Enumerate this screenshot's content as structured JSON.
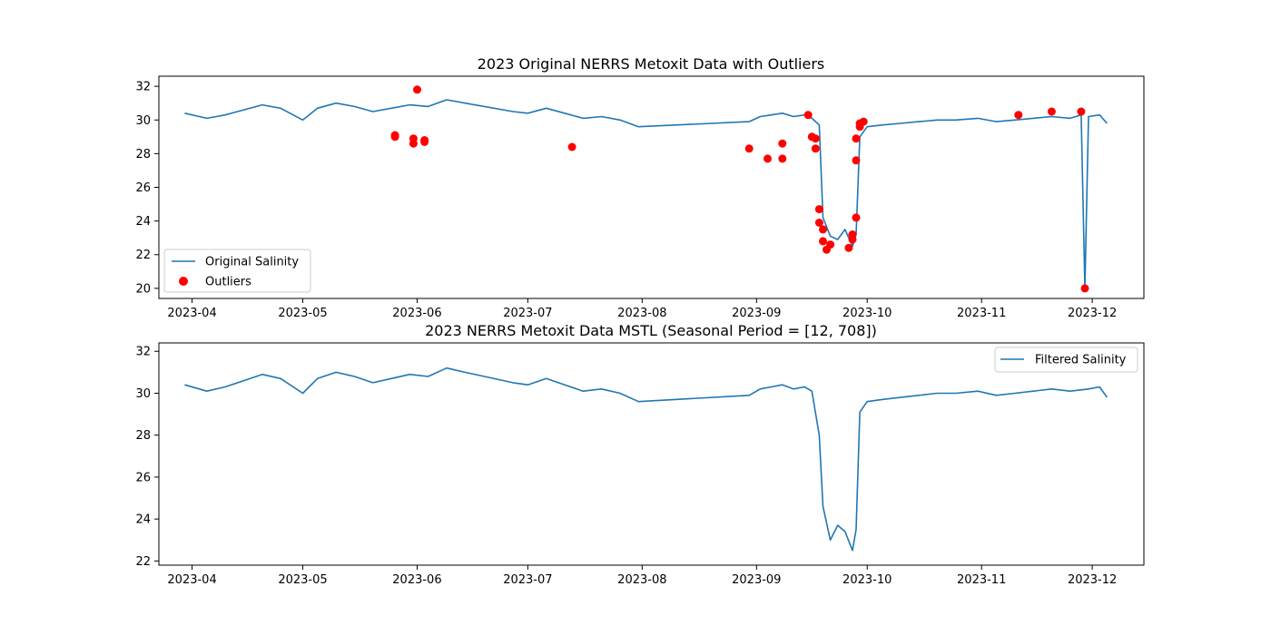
{
  "chart_data": [
    {
      "type": "line",
      "title": "2023 Original NERRS Metoxit Data with Outliers",
      "xlabel": "",
      "ylabel": "",
      "xlim": [
        "2023-03-23",
        "2023-12-15"
      ],
      "ylim": [
        19.4,
        32.6
      ],
      "x_ticks": [
        "2023-04",
        "2023-05",
        "2023-06",
        "2023-07",
        "2023-08",
        "2023-09",
        "2023-10",
        "2023-11",
        "2023-12"
      ],
      "y_ticks": [
        20,
        22,
        24,
        26,
        28,
        30,
        32
      ],
      "legend_position": "lower-left",
      "series": [
        {
          "name": "Original Salinity",
          "kind": "line",
          "color": "#1f77b4",
          "x": [
            "2023-03-30",
            "2023-04-05",
            "2023-04-10",
            "2023-04-15",
            "2023-04-20",
            "2023-04-25",
            "2023-05-01",
            "2023-05-05",
            "2023-05-10",
            "2023-05-15",
            "2023-05-20",
            "2023-05-25",
            "2023-05-30",
            "2023-06-04",
            "2023-06-09",
            "2023-06-14",
            "2023-06-27",
            "2023-07-01",
            "2023-07-06",
            "2023-07-11",
            "2023-07-16",
            "2023-07-21",
            "2023-07-26",
            "2023-07-31",
            "2023-08-30",
            "2023-09-02",
            "2023-09-05",
            "2023-09-08",
            "2023-09-11",
            "2023-09-14",
            "2023-09-16",
            "2023-09-18",
            "2023-09-19",
            "2023-09-21",
            "2023-09-23",
            "2023-09-25",
            "2023-09-27",
            "2023-09-28",
            "2023-09-29",
            "2023-10-01",
            "2023-10-05",
            "2023-10-10",
            "2023-10-15",
            "2023-10-20",
            "2023-10-25",
            "2023-10-31",
            "2023-11-05",
            "2023-11-10",
            "2023-11-15",
            "2023-11-20",
            "2023-11-25",
            "2023-11-28",
            "2023-11-29",
            "2023-11-30",
            "2023-12-03",
            "2023-12-05"
          ],
          "values": [
            30.4,
            30.1,
            30.3,
            30.6,
            30.9,
            30.7,
            30.0,
            30.7,
            31.0,
            30.8,
            30.5,
            30.7,
            30.9,
            30.8,
            31.2,
            31.0,
            30.5,
            30.4,
            30.7,
            30.4,
            30.1,
            30.2,
            30.0,
            29.6,
            29.9,
            30.2,
            30.3,
            30.4,
            30.2,
            30.3,
            30.1,
            29.7,
            24.2,
            23.1,
            22.9,
            23.5,
            22.5,
            23.2,
            29.0,
            29.6,
            29.7,
            29.8,
            29.9,
            30.0,
            30.0,
            30.1,
            29.9,
            30.0,
            30.1,
            30.2,
            30.1,
            30.3,
            20.0,
            30.2,
            30.3,
            29.8
          ]
        },
        {
          "name": "Outliers",
          "kind": "scatter",
          "color": "#ff0000",
          "x": [
            "2023-05-26",
            "2023-05-26",
            "2023-05-31",
            "2023-05-31",
            "2023-06-01",
            "2023-06-03",
            "2023-06-03",
            "2023-07-13",
            "2023-08-30",
            "2023-09-04",
            "2023-09-08",
            "2023-09-08",
            "2023-09-15",
            "2023-09-16",
            "2023-09-17",
            "2023-09-17",
            "2023-09-18",
            "2023-09-18",
            "2023-09-19",
            "2023-09-19",
            "2023-09-20",
            "2023-09-21",
            "2023-09-26",
            "2023-09-27",
            "2023-09-27",
            "2023-09-28",
            "2023-09-28",
            "2023-09-28",
            "2023-09-29",
            "2023-09-29",
            "2023-09-30",
            "2023-11-11",
            "2023-11-20",
            "2023-11-28",
            "2023-11-29"
          ],
          "values": [
            29.1,
            29.0,
            28.9,
            28.6,
            31.8,
            28.8,
            28.7,
            28.4,
            28.3,
            27.7,
            28.6,
            27.7,
            30.3,
            29.0,
            28.9,
            28.3,
            24.7,
            23.9,
            23.5,
            22.8,
            22.3,
            22.6,
            22.4,
            22.9,
            23.2,
            24.2,
            27.6,
            28.9,
            29.6,
            29.8,
            29.9,
            30.3,
            30.5,
            30.5,
            20.0
          ]
        }
      ]
    },
    {
      "type": "line",
      "title": "2023 NERRS Metoxit Data MSTL (Seasonal Period = [12, 708])",
      "xlabel": "",
      "ylabel": "",
      "xlim": [
        "2023-03-23",
        "2023-12-15"
      ],
      "ylim": [
        21.8,
        32.4
      ],
      "x_ticks": [
        "2023-04",
        "2023-05",
        "2023-06",
        "2023-07",
        "2023-08",
        "2023-09",
        "2023-10",
        "2023-11",
        "2023-12"
      ],
      "y_ticks": [
        22,
        24,
        26,
        28,
        30,
        32
      ],
      "legend_position": "upper-right",
      "series": [
        {
          "name": "Filtered Salinity",
          "kind": "line",
          "color": "#1f77b4",
          "x": [
            "2023-03-30",
            "2023-04-05",
            "2023-04-10",
            "2023-04-15",
            "2023-04-20",
            "2023-04-25",
            "2023-05-01",
            "2023-05-05",
            "2023-05-10",
            "2023-05-15",
            "2023-05-20",
            "2023-05-25",
            "2023-05-30",
            "2023-06-04",
            "2023-06-09",
            "2023-06-14",
            "2023-06-27",
            "2023-07-01",
            "2023-07-06",
            "2023-07-11",
            "2023-07-16",
            "2023-07-21",
            "2023-07-26",
            "2023-07-31",
            "2023-08-30",
            "2023-09-02",
            "2023-09-05",
            "2023-09-08",
            "2023-09-11",
            "2023-09-14",
            "2023-09-16",
            "2023-09-18",
            "2023-09-19",
            "2023-09-21",
            "2023-09-23",
            "2023-09-25",
            "2023-09-27",
            "2023-09-28",
            "2023-09-29",
            "2023-10-01",
            "2023-10-05",
            "2023-10-10",
            "2023-10-15",
            "2023-10-20",
            "2023-10-25",
            "2023-10-31",
            "2023-11-05",
            "2023-11-10",
            "2023-11-15",
            "2023-11-20",
            "2023-11-25",
            "2023-11-30",
            "2023-12-03",
            "2023-12-05"
          ],
          "values": [
            30.4,
            30.1,
            30.3,
            30.6,
            30.9,
            30.7,
            30.0,
            30.7,
            31.0,
            30.8,
            30.5,
            30.7,
            30.9,
            30.8,
            31.2,
            31.0,
            30.5,
            30.4,
            30.7,
            30.4,
            30.1,
            30.2,
            30.0,
            29.6,
            29.9,
            30.2,
            30.3,
            30.4,
            30.2,
            30.3,
            30.1,
            28.0,
            24.6,
            23.0,
            23.7,
            23.4,
            22.5,
            23.5,
            29.1,
            29.6,
            29.7,
            29.8,
            29.9,
            30.0,
            30.0,
            30.1,
            29.9,
            30.0,
            30.1,
            30.2,
            30.1,
            30.2,
            30.3,
            29.8
          ]
        }
      ]
    }
  ]
}
